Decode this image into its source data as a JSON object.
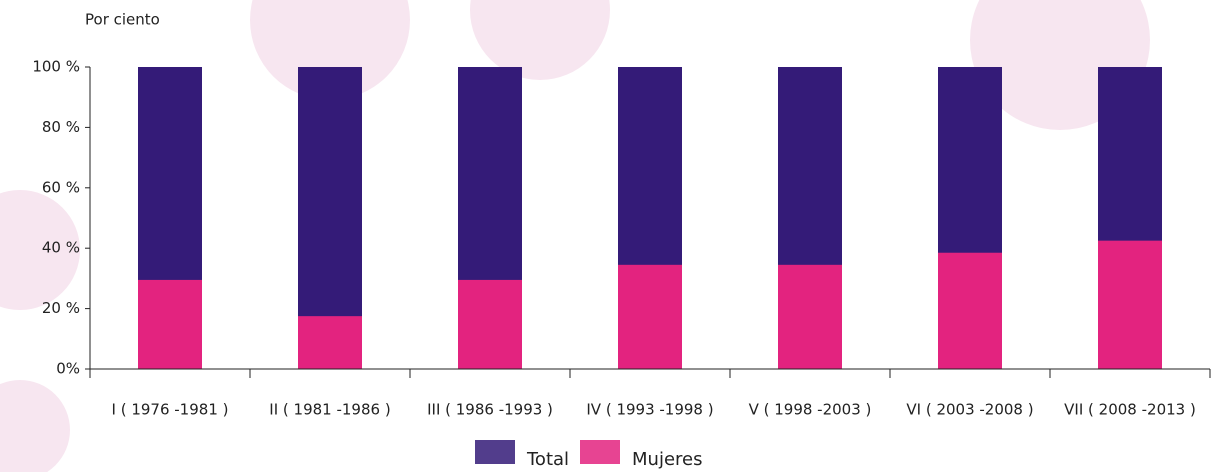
{
  "chart_data": {
    "type": "bar",
    "ylabel": "Por ciento",
    "categories": [
      "I ( 1976  -1981  )",
      "II ( 1981  -1986  )",
      "III ( 1986  -1993  )",
      "IV ( 1993  -1998  )",
      "V ( 1998  -2003  )",
      "VI ( 2003  -2008  )",
      "VII ( 2008  -2013  )"
    ],
    "series": [
      {
        "name": "Total",
        "color": "#341b78",
        "values": [
          100,
          100,
          100,
          100,
          100,
          100,
          100
        ]
      },
      {
        "name": "Mujeres",
        "color": "#e3237f",
        "values": [
          29.5,
          17.5,
          29.5,
          34.5,
          34.5,
          38.5,
          42.5
        ]
      }
    ],
    "ylim": [
      0,
      100
    ],
    "yticks": [
      {
        "value": 0,
        "label": "0%"
      },
      {
        "value": 20,
        "label": "20 %"
      },
      {
        "value": 40,
        "label": "40 %"
      },
      {
        "value": 60,
        "label": "60 %"
      },
      {
        "value": 80,
        "label": "80 %"
      },
      {
        "value": 100,
        "label": "100 %"
      }
    ],
    "legend": "bottom"
  }
}
